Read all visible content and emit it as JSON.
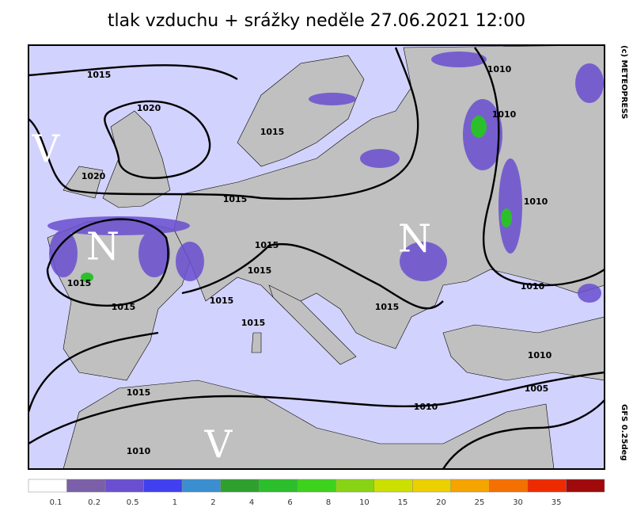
{
  "title": "tlak vzduchu + srážky  neděle 27.06.2021 12:00",
  "copyright": "(c) METEOPRESS",
  "model": "GFS  0.25deg",
  "pressure_centers": [
    "V",
    "N",
    "N",
    "V"
  ],
  "isobar_labels": [
    "1015",
    "1020",
    "1015",
    "1010",
    "1010",
    "1020",
    "1015",
    "1010",
    "1015",
    "1015",
    "1015",
    "1015",
    "1015",
    "1015",
    "1010",
    "1015",
    "1010",
    "1005",
    "1015",
    "1010",
    "1010"
  ],
  "legend": {
    "colors": [
      "#ffffff",
      "#7b5fa8",
      "#6a4fd0",
      "#4040f0",
      "#3a8fd0",
      "#2ea02e",
      "#2cbf2c",
      "#3ed21e",
      "#88d414",
      "#cce000",
      "#ecd000",
      "#f6a400",
      "#f47000",
      "#ee2a00",
      "#a00a0a"
    ],
    "ticks": [
      0.1,
      0.2,
      0.5,
      1,
      2,
      4,
      6,
      8,
      10,
      15,
      20,
      25,
      30,
      35
    ]
  }
}
